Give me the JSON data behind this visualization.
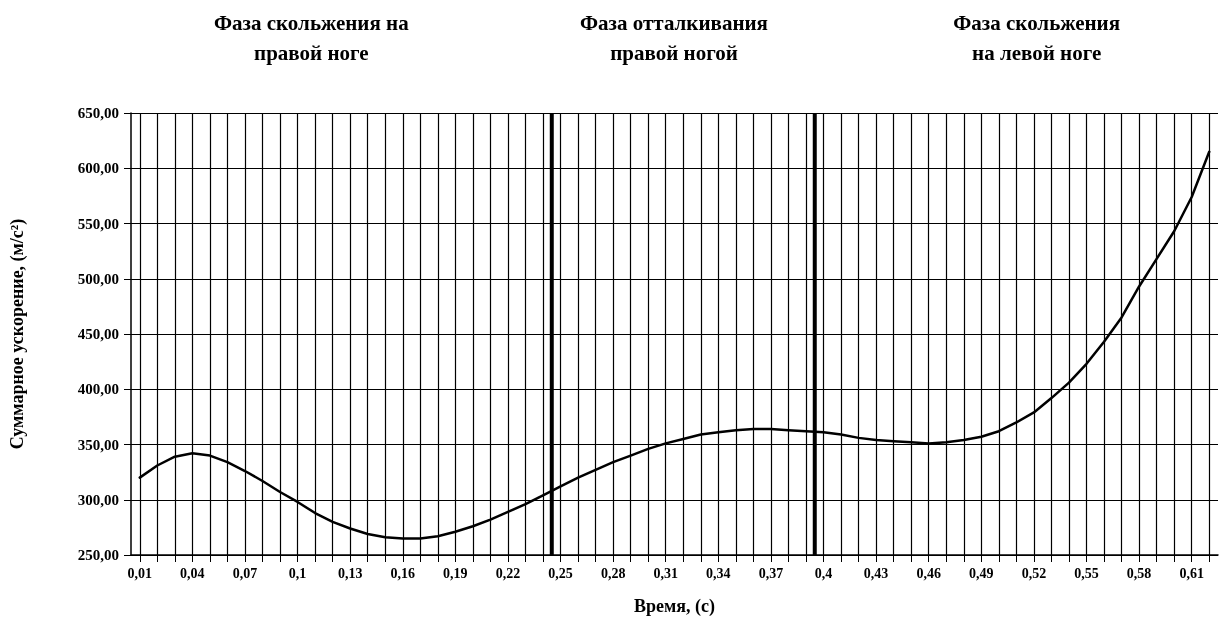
{
  "chart_data": {
    "type": "line",
    "xlabel": "Время, (с)",
    "ylabel": "Суммарное ускорение, (м/с²)",
    "annotations": [
      "Фаза скольжения на\nправой ноге",
      "Фаза отталкивания\nправой ногой",
      "Фаза скольжения\nна левой ноге"
    ],
    "x": [
      0.01,
      0.02,
      0.03,
      0.04,
      0.05,
      0.06,
      0.07,
      0.08,
      0.09,
      0.1,
      0.11,
      0.12,
      0.13,
      0.14,
      0.15,
      0.16,
      0.17,
      0.18,
      0.19,
      0.2,
      0.21,
      0.22,
      0.23,
      0.24,
      0.25,
      0.26,
      0.27,
      0.28,
      0.29,
      0.3,
      0.31,
      0.32,
      0.33,
      0.34,
      0.35,
      0.36,
      0.37,
      0.38,
      0.39,
      0.4,
      0.41,
      0.42,
      0.43,
      0.44,
      0.45,
      0.46,
      0.47,
      0.48,
      0.49,
      0.5,
      0.51,
      0.52,
      0.53,
      0.54,
      0.55,
      0.56,
      0.57,
      0.58,
      0.59,
      0.6,
      0.61,
      0.62
    ],
    "series": [
      {
        "color": "#000000",
        "values": [
          320,
          331,
          339,
          342,
          340,
          334,
          326,
          317,
          307,
          298,
          288,
          280,
          274,
          269,
          266,
          265,
          265,
          267,
          271,
          276,
          282,
          289,
          296,
          304,
          312,
          320,
          327,
          334,
          340,
          346,
          351,
          355,
          359,
          361,
          363,
          364,
          364,
          363,
          362,
          361,
          359,
          356,
          354,
          353,
          352,
          351,
          352,
          354,
          357,
          362,
          370,
          379,
          392,
          406,
          423,
          443,
          465,
          493,
          518,
          543,
          574,
          615
        ]
      }
    ],
    "xlim": [
      0.005,
      0.625
    ],
    "xticks": [
      {
        "value": 0.01,
        "label": "0,01"
      },
      {
        "value": 0.02,
        "label": null
      },
      {
        "value": 0.03,
        "label": null
      },
      {
        "value": 0.04,
        "label": "0,04"
      },
      {
        "value": 0.05,
        "label": null
      },
      {
        "value": 0.06,
        "label": null
      },
      {
        "value": 0.07,
        "label": "0,07"
      },
      {
        "value": 0.08,
        "label": null
      },
      {
        "value": 0.09,
        "label": null
      },
      {
        "value": 0.1,
        "label": "0,1"
      },
      {
        "value": 0.11,
        "label": null
      },
      {
        "value": 0.12,
        "label": null
      },
      {
        "value": 0.13,
        "label": "0,13"
      },
      {
        "value": 0.14,
        "label": null
      },
      {
        "value": 0.15,
        "label": null
      },
      {
        "value": 0.16,
        "label": "0,16"
      },
      {
        "value": 0.17,
        "label": null
      },
      {
        "value": 0.18,
        "label": null
      },
      {
        "value": 0.19,
        "label": "0,19"
      },
      {
        "value": 0.2,
        "label": null
      },
      {
        "value": 0.21,
        "label": null
      },
      {
        "value": 0.22,
        "label": "0,22"
      },
      {
        "value": 0.23,
        "label": null
      },
      {
        "value": 0.24,
        "label": null
      },
      {
        "value": 0.25,
        "label": "0,25"
      },
      {
        "value": 0.26,
        "label": null
      },
      {
        "value": 0.27,
        "label": null
      },
      {
        "value": 0.28,
        "label": "0,28"
      },
      {
        "value": 0.29,
        "label": null
      },
      {
        "value": 0.3,
        "label": null
      },
      {
        "value": 0.31,
        "label": "0,31"
      },
      {
        "value": 0.32,
        "label": null
      },
      {
        "value": 0.33,
        "label": null
      },
      {
        "value": 0.34,
        "label": "0,34"
      },
      {
        "value": 0.35,
        "label": null
      },
      {
        "value": 0.36,
        "label": null
      },
      {
        "value": 0.37,
        "label": "0,37"
      },
      {
        "value": 0.38,
        "label": null
      },
      {
        "value": 0.39,
        "label": null
      },
      {
        "value": 0.4,
        "label": "0,4"
      },
      {
        "value": 0.41,
        "label": null
      },
      {
        "value": 0.42,
        "label": null
      },
      {
        "value": 0.43,
        "label": "0,43"
      },
      {
        "value": 0.44,
        "label": null
      },
      {
        "value": 0.45,
        "label": null
      },
      {
        "value": 0.46,
        "label": "0,46"
      },
      {
        "value": 0.47,
        "label": null
      },
      {
        "value": 0.48,
        "label": null
      },
      {
        "value": 0.49,
        "label": "0,49"
      },
      {
        "value": 0.5,
        "label": null
      },
      {
        "value": 0.51,
        "label": null
      },
      {
        "value": 0.52,
        "label": "0,52"
      },
      {
        "value": 0.53,
        "label": null
      },
      {
        "value": 0.54,
        "label": null
      },
      {
        "value": 0.55,
        "label": "0,55"
      },
      {
        "value": 0.56,
        "label": null
      },
      {
        "value": 0.57,
        "label": null
      },
      {
        "value": 0.58,
        "label": "0,58"
      },
      {
        "value": 0.59,
        "label": null
      },
      {
        "value": 0.6,
        "label": null
      },
      {
        "value": 0.61,
        "label": "0,61"
      },
      {
        "value": 0.62,
        "label": null
      }
    ],
    "ylim": [
      250,
      650
    ],
    "yticks": [
      {
        "value": 250,
        "label": "250,00"
      },
      {
        "value": 300,
        "label": "300,00"
      },
      {
        "value": 350,
        "label": "350,00"
      },
      {
        "value": 400,
        "label": "400,00"
      },
      {
        "value": 450,
        "label": "450,00"
      },
      {
        "value": 500,
        "label": "500,00"
      },
      {
        "value": 550,
        "label": "550,00"
      },
      {
        "value": 600,
        "label": "600,00"
      },
      {
        "value": 650,
        "label": "650,00"
      }
    ],
    "ref_lines": [
      {
        "axis": "x",
        "value": 0.245,
        "color": "#000000"
      },
      {
        "axis": "x",
        "value": 0.395,
        "color": "#000000"
      }
    ],
    "grid": true,
    "marker": "none",
    "line_style": "solid"
  }
}
